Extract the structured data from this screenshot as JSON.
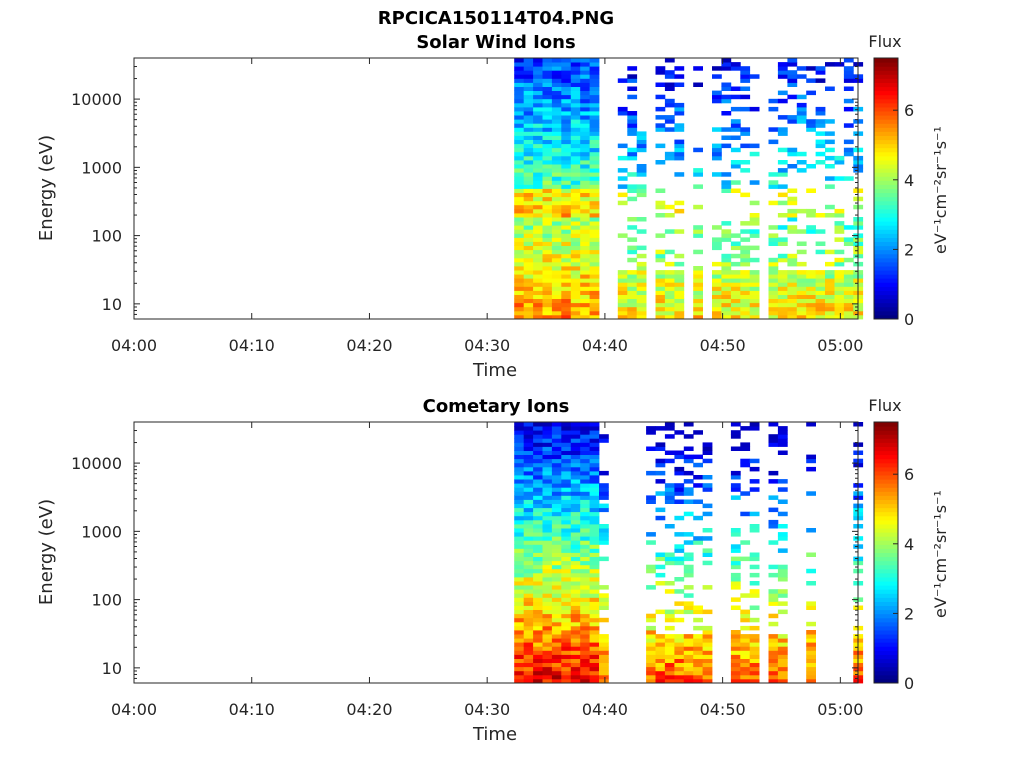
{
  "figure": {
    "title": "RPCICA150114T04.PNG"
  },
  "chart_data": [
    {
      "type": "heatmap",
      "title": "Solar Wind Ions",
      "xlabel": "Time",
      "ylabel": "Energy (eV)",
      "x_ticks": [
        "04:00",
        "04:10",
        "04:20",
        "04:30",
        "04:40",
        "04:50",
        "05:00"
      ],
      "x_range_min": [
        0,
        61.5
      ],
      "y_scale": "log",
      "y_ticks": [
        "10",
        "100",
        "1000",
        "10000"
      ],
      "y_range": [
        6,
        40000
      ],
      "colorbar": {
        "label": "Flux",
        "unit": "eV⁻¹cm⁻²sr⁻¹s⁻¹",
        "ticks": [
          "0",
          "2",
          "4",
          "6"
        ],
        "range": [
          0,
          7.5
        ],
        "colormap": "jet"
      },
      "data_start_min": 32.3,
      "data_end_min": 61.2,
      "dense_until_min": 39.0,
      "grid": false
    },
    {
      "type": "heatmap",
      "title": "Cometary Ions",
      "xlabel": "Time",
      "ylabel": "Energy (eV)",
      "x_ticks": [
        "04:00",
        "04:10",
        "04:20",
        "04:30",
        "04:40",
        "04:50",
        "05:00"
      ],
      "x_range_min": [
        0,
        61.5
      ],
      "y_scale": "log",
      "y_ticks": [
        "10",
        "100",
        "1000",
        "10000"
      ],
      "y_range": [
        6,
        40000
      ],
      "colorbar": {
        "label": "Flux",
        "unit": "eV⁻¹cm⁻²sr⁻¹s⁻¹",
        "ticks": [
          "0",
          "2",
          "4",
          "6"
        ],
        "range": [
          0,
          7.5
        ],
        "colormap": "jet"
      },
      "data_start_min": 32.3,
      "data_end_min": 61.2,
      "dense_until_min": 39.0,
      "grid": false
    }
  ]
}
